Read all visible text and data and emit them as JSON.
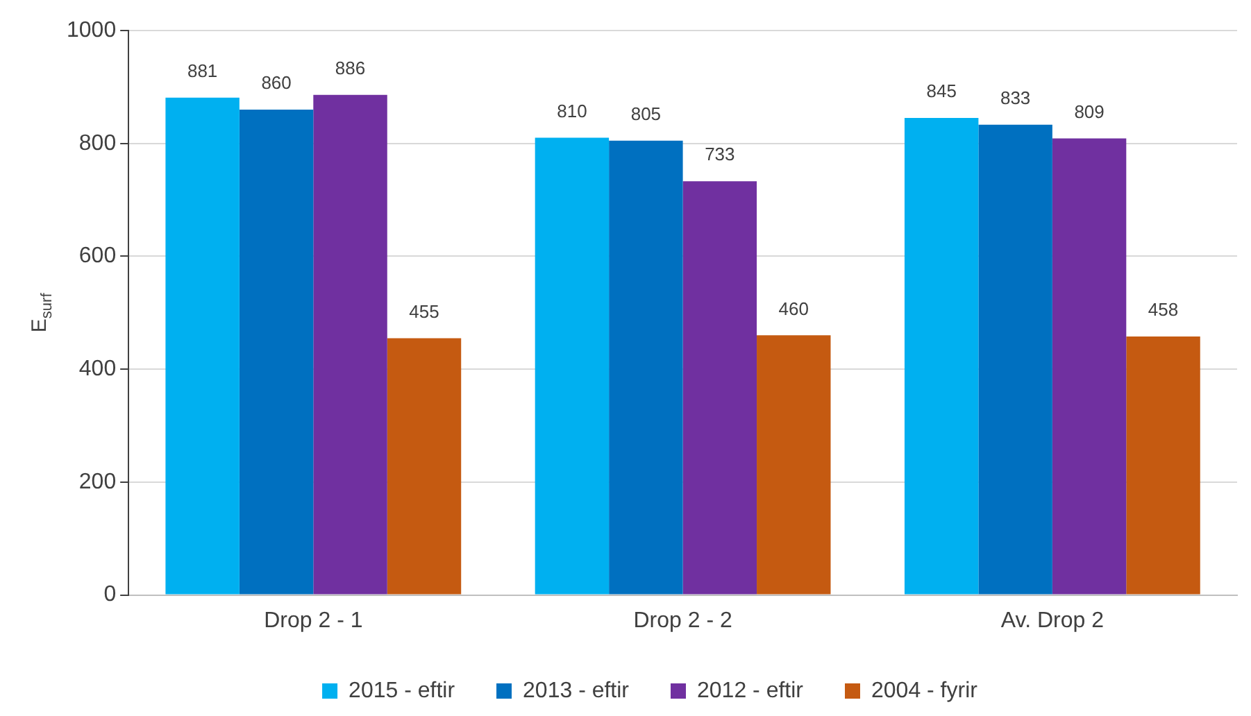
{
  "chart_data": {
    "type": "bar",
    "ylabel": "E$_{surf}$",
    "categories": [
      "Drop 2 - 1",
      "Drop 2 - 2",
      "Av. Drop 2"
    ],
    "series": [
      {
        "name": "2015 - eftir",
        "color": "#00b0f0",
        "values": [
          881,
          810,
          845
        ]
      },
      {
        "name": "2013 - eftir",
        "color": "#0070c0",
        "values": [
          860,
          805,
          833
        ]
      },
      {
        "name": "2012 - eftir",
        "color": "#7030a0",
        "values": [
          886,
          733,
          809
        ]
      },
      {
        "name": "2004 - fyrir",
        "color": "#c55a11",
        "values": [
          455,
          460,
          458
        ]
      }
    ],
    "ylim": [
      0,
      1000
    ],
    "yticks": [
      0,
      200,
      400,
      600,
      800,
      1000
    ],
    "grid": "y",
    "legend": "bottom",
    "data_labels": true
  }
}
